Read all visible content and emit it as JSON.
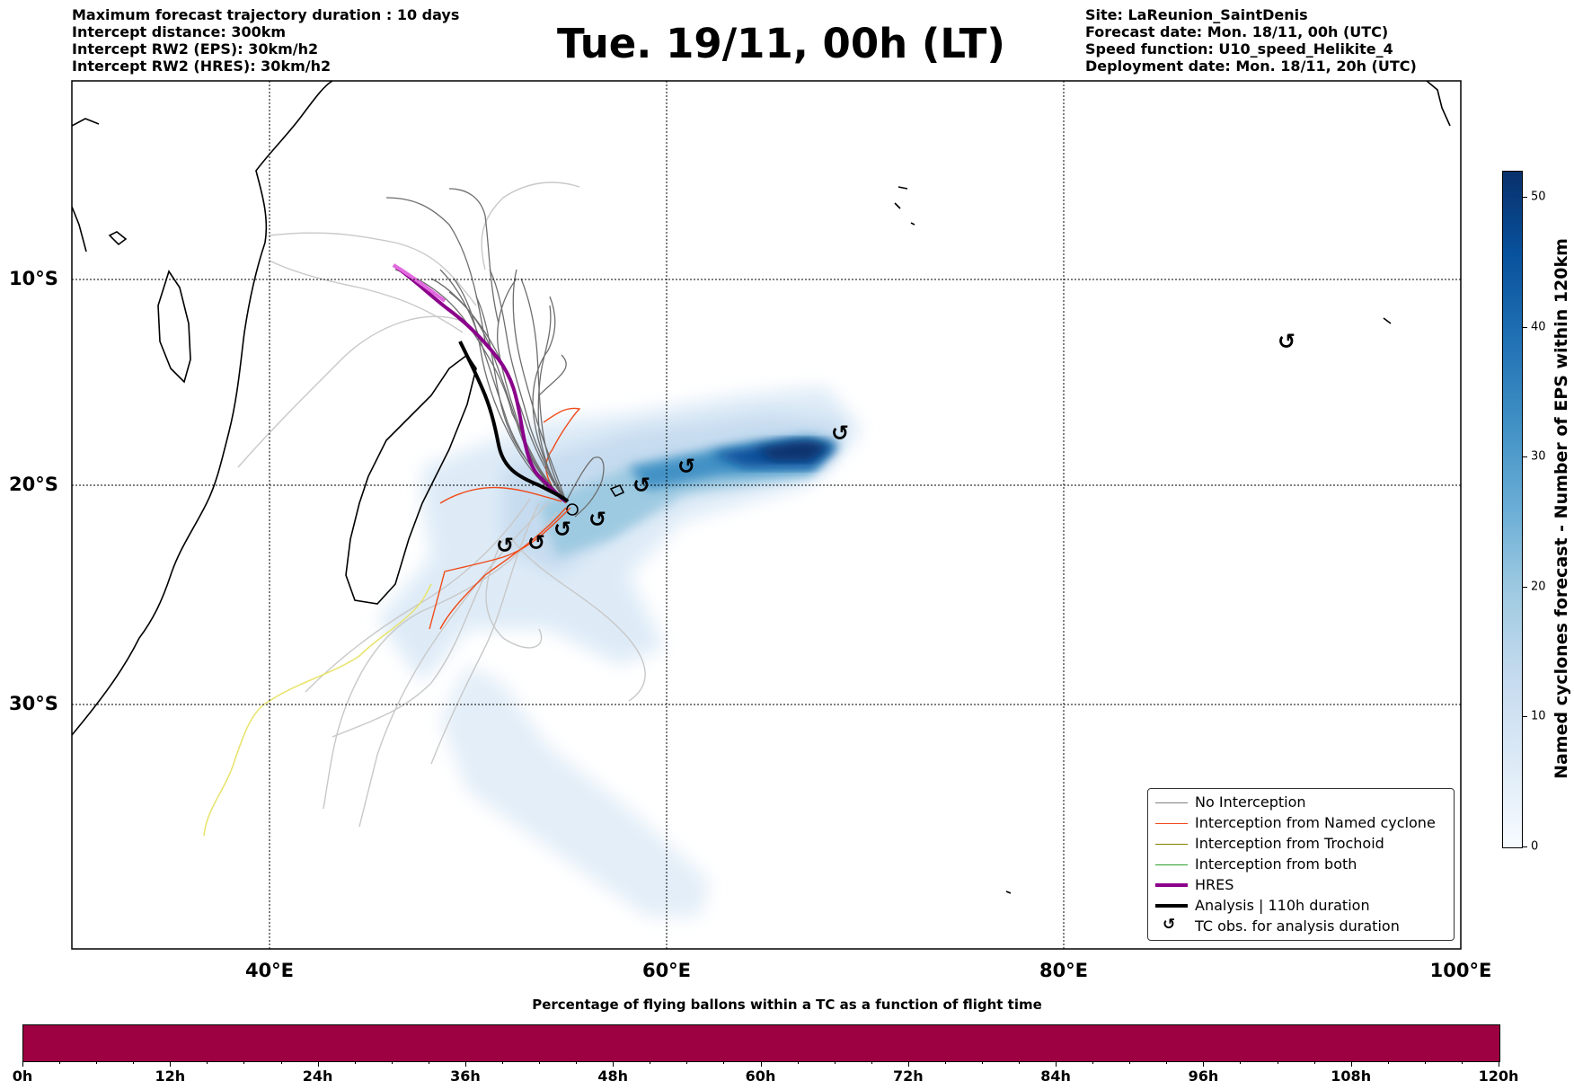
{
  "header_left": [
    "Maximum forecast trajectory duration : 10 days",
    "Intercept distance: 300km",
    "Intercept RW2 (EPS):  30km/h2",
    "Intercept RW2 (HRES): 30km/h2"
  ],
  "header_right": [
    "Site: LaReunion_SaintDenis",
    "Forecast date: Mon. 18/11, 00h (UTC)",
    "Speed function: U10_speed_Helikite_4",
    "Deployment date: Mon. 18/11, 20h (UTC)"
  ],
  "title": "Tue. 19/11, 00h (LT)",
  "map": {
    "lat_labels": [
      "10°S",
      "20°S",
      "30°S"
    ],
    "lon_labels": [
      "40°E",
      "60°E",
      "80°E",
      "100°E"
    ],
    "grid": true
  },
  "colorbar": {
    "title": "Named cyclones forecast - Number of EPS within 120km",
    "ticks": [
      "0",
      "10",
      "20",
      "30",
      "40",
      "50"
    ],
    "colors": [
      "#f7fbff",
      "#c6dbef",
      "#6baed6",
      "#2171b5",
      "#08306b"
    ]
  },
  "legend": [
    {
      "label": "No Interception",
      "color": "#808080"
    },
    {
      "label": "Interception from Named cyclone",
      "color": "#f04a1a"
    },
    {
      "label": "Interception from Trochoid",
      "color": "#808000"
    },
    {
      "label": "Interception from both",
      "color": "#2ca02c"
    },
    {
      "label": "HRES",
      "color": "#8b008b"
    },
    {
      "label": "Analysis | 110h duration",
      "color": "#000000"
    },
    {
      "label": "TC obs. for analysis duration",
      "icon": "cyclone-icon"
    }
  ],
  "flight_bar": {
    "title": "Percentage of flying ballons within a TC as a function of flight time",
    "color": "#9e0142",
    "ticks": [
      "0h",
      "12h",
      "24h",
      "36h",
      "48h",
      "60h",
      "72h",
      "84h",
      "96h",
      "108h",
      "120h"
    ]
  },
  "tc_obs_symbol": "↺"
}
